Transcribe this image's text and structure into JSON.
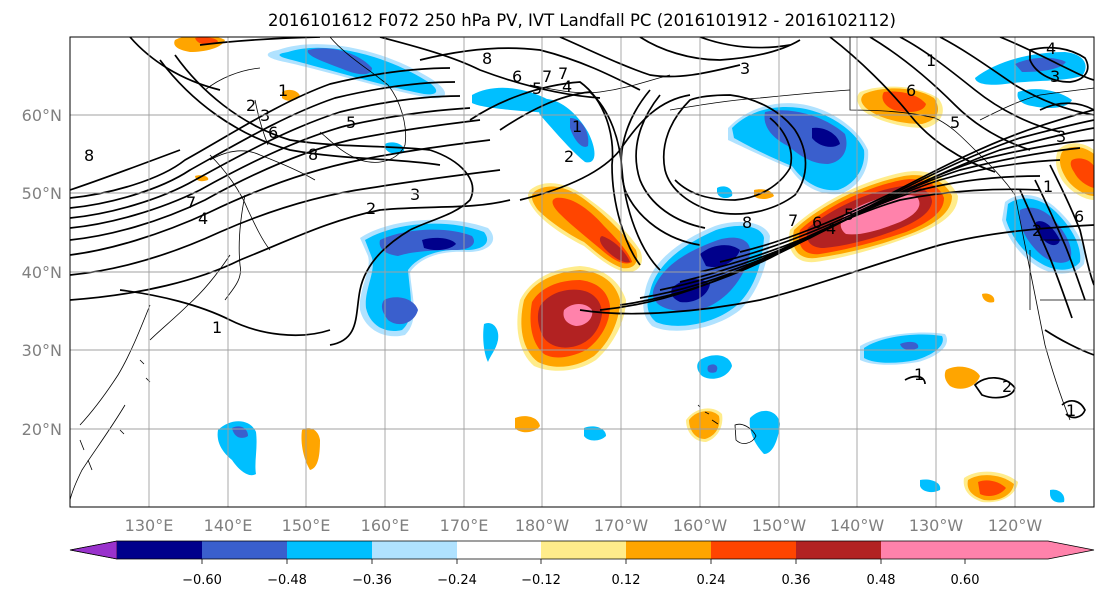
{
  "title": "2016101612 F072 250 hPa PV, IVT Landfall PC (2016101912 - 2016102112)",
  "map": {
    "lat_ticks": [
      "20°N",
      "30°N",
      "40°N",
      "50°N",
      "60°N"
    ],
    "lon_ticks": [
      "130°E",
      "140°E",
      "150°E",
      "160°E",
      "170°E",
      "180°W",
      "170°W",
      "160°W",
      "150°W",
      "140°W",
      "130°W",
      "120°W"
    ],
    "lat_range": [
      10,
      70
    ],
    "lon_range": [
      120,
      250
    ],
    "grid": true,
    "contour_labels": [
      "8",
      "7",
      "6",
      "5",
      "4",
      "3",
      "2",
      "1",
      "1",
      "2",
      "3",
      "6",
      "8",
      "4",
      "8",
      "7",
      "3",
      "5",
      "6",
      "7",
      "8",
      "2",
      "7",
      "6",
      "5",
      "4",
      "1",
      "1",
      "3",
      "6",
      "1",
      "2",
      "5",
      "4",
      "3",
      "1",
      "2",
      "1"
    ]
  },
  "colorbar": {
    "ticks": [
      "−0.60",
      "−0.48",
      "−0.36",
      "−0.24",
      "−0.12",
      "0.12",
      "0.24",
      "0.36",
      "0.48",
      "0.60"
    ],
    "colors": [
      "#9932cc",
      "#00008b",
      "#3a5fcd",
      "#00bfff",
      "#b0e2ff",
      "#ffffff",
      "#ffec8b",
      "#ffa500",
      "#ff4500",
      "#b22222",
      "#ff82ab"
    ]
  }
}
